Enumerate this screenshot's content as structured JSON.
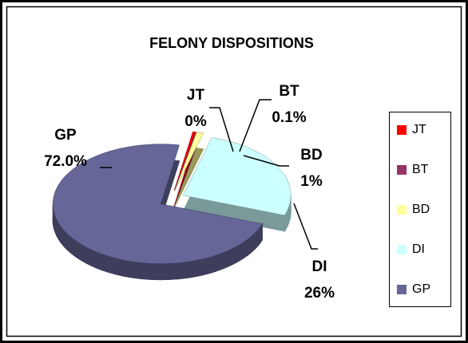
{
  "chart_data": {
    "type": "pie3d",
    "title": "FELONY DISPOSITIONS",
    "categories": [
      "JT",
      "BT",
      "BD",
      "DI",
      "GP"
    ],
    "values": [
      0.4,
      0.1,
      1,
      26,
      72
    ],
    "value_labels": [
      "0%",
      "0.1%",
      "1%",
      "26%",
      "72.0%"
    ],
    "colors": [
      "#ff0000",
      "#993366",
      "#ffff99",
      "#ccffff",
      "#666699"
    ],
    "legend": "right"
  }
}
